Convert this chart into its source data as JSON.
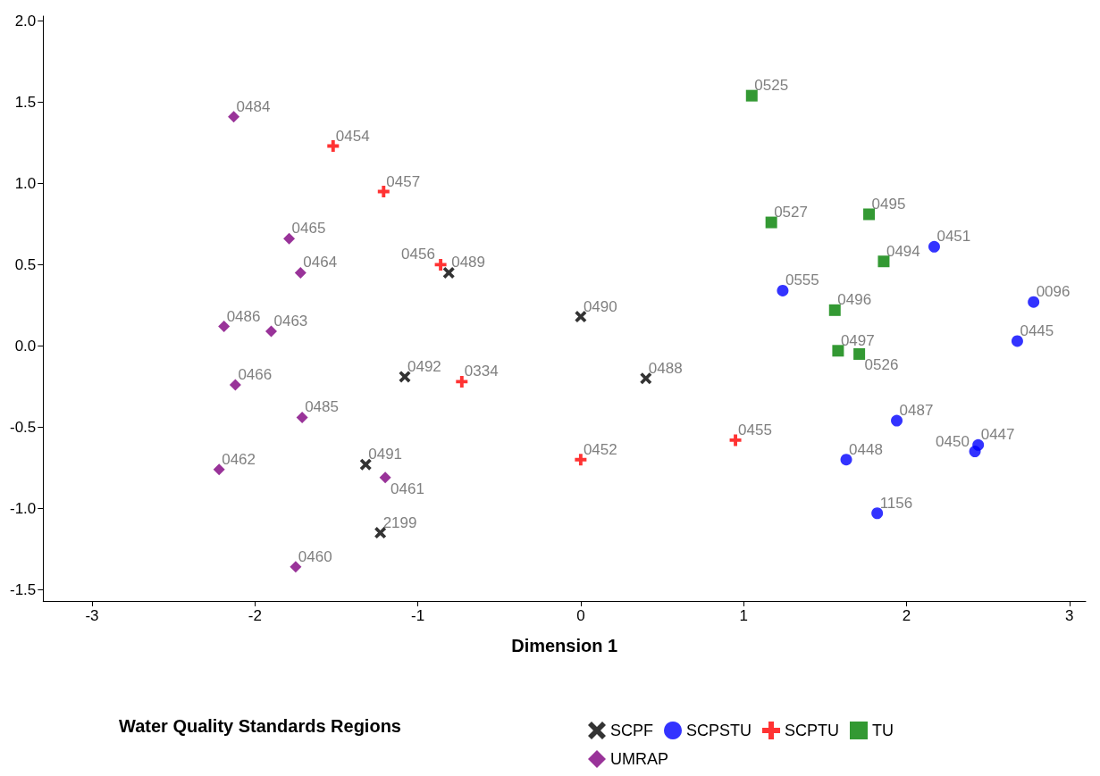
{
  "chart_data": {
    "type": "scatter",
    "xlabel": "Dimension 1",
    "legend_title": "Water Quality Standards Regions",
    "legend": "bottom",
    "grid": false,
    "xlim": [
      -3.3,
      3.1
    ],
    "xticks": [
      -3,
      -2,
      -1,
      0,
      1,
      2,
      3
    ],
    "ylim": [
      -1.57,
      2.03
    ],
    "yticks": [
      {
        "value": -1.5,
        "label": "-1.5"
      },
      {
        "value": -1,
        "label": "-1.0"
      },
      {
        "value": -0.5,
        "label": "-0.5"
      },
      {
        "value": 0,
        "label": "0.0"
      },
      {
        "value": 0.5,
        "label": "0.5"
      },
      {
        "value": 1,
        "label": "1.0"
      },
      {
        "value": 1.5,
        "label": "1.5"
      },
      {
        "value": 2,
        "label": "2.0"
      }
    ],
    "series": [
      {
        "name": "SCPF",
        "color": "#000000",
        "marker": "cross",
        "x": [
          -0.81,
          0,
          -1.08,
          0.4,
          -1.32,
          -1.23
        ],
        "values": [
          0.45,
          0.18,
          -0.19,
          -0.2,
          -0.73,
          -1.15
        ]
      },
      {
        "name": "SCPSTU",
        "color": "#0000ff",
        "marker": "circle",
        "x": [
          2.17,
          1.24,
          2.78,
          2.68,
          1.94,
          2.44,
          2.42,
          1.63,
          1.82
        ],
        "values": [
          0.61,
          0.34,
          0.27,
          0.03,
          -0.46,
          -0.61,
          -0.65,
          -0.7,
          -1.03
        ]
      },
      {
        "name": "SCPTU",
        "color": "#ff0000",
        "marker": "plus",
        "x": [
          -1.52,
          -1.21,
          -0.86,
          -0.73,
          0,
          0.95
        ],
        "values": [
          1.23,
          0.95,
          0.5,
          -0.22,
          -0.7,
          -0.58
        ]
      },
      {
        "name": "TU",
        "color": "#008000",
        "marker": "square",
        "x": [
          1.05,
          1.17,
          1.77,
          1.86,
          1.56,
          1.58,
          1.71
        ],
        "values": [
          1.54,
          0.76,
          0.81,
          0.52,
          0.22,
          -0.03,
          -0.05
        ]
      },
      {
        "name": "UMRAP",
        "color": "#800080",
        "marker": "diamond",
        "x": [
          -2.13,
          -1.79,
          -1.72,
          -2.19,
          -1.9,
          -2.12,
          -1.71,
          -2.22,
          -1.2,
          -1.75
        ],
        "values": [
          1.41,
          0.66,
          0.45,
          0.12,
          0.09,
          -0.24,
          -0.44,
          -0.76,
          -0.81,
          -1.36
        ]
      }
    ],
    "annotations": [
      {
        "text": "0489",
        "x": -0.81,
        "y": 0.45
      },
      {
        "text": "0490",
        "x": 0,
        "y": 0.18
      },
      {
        "text": "0492",
        "x": -1.08,
        "y": -0.19
      },
      {
        "text": "0488",
        "x": 0.4,
        "y": -0.2
      },
      {
        "text": "0491",
        "x": -1.32,
        "y": -0.73
      },
      {
        "text": "2199",
        "x": -1.23,
        "y": -1.15
      },
      {
        "text": "0451",
        "x": 2.17,
        "y": 0.61
      },
      {
        "text": "0555",
        "x": 1.24,
        "y": 0.34
      },
      {
        "text": "0096",
        "x": 2.78,
        "y": 0.27
      },
      {
        "text": "0445",
        "x": 2.68,
        "y": 0.03
      },
      {
        "text": "0487",
        "x": 1.94,
        "y": -0.46
      },
      {
        "text": "0447",
        "x": 2.44,
        "y": -0.61
      },
      {
        "text": "0450",
        "x": 2.42,
        "y": -0.65
      },
      {
        "text": "0448",
        "x": 1.63,
        "y": -0.7
      },
      {
        "text": "1156",
        "x": 1.82,
        "y": -1.03
      },
      {
        "text": "0454",
        "x": -1.52,
        "y": 1.23
      },
      {
        "text": "0457",
        "x": -1.21,
        "y": 0.95
      },
      {
        "text": "0456",
        "x": -0.86,
        "y": 0.5
      },
      {
        "text": "0334",
        "x": -0.73,
        "y": -0.22
      },
      {
        "text": "0452",
        "x": 0,
        "y": -0.7
      },
      {
        "text": "0455",
        "x": 0.95,
        "y": -0.58
      },
      {
        "text": "0525",
        "x": 1.05,
        "y": 1.54
      },
      {
        "text": "0527",
        "x": 1.17,
        "y": 0.76
      },
      {
        "text": "0495",
        "x": 1.77,
        "y": 0.81
      },
      {
        "text": "0494",
        "x": 1.86,
        "y": 0.52
      },
      {
        "text": "0496",
        "x": 1.56,
        "y": 0.22
      },
      {
        "text": "0497",
        "x": 1.58,
        "y": -0.03
      },
      {
        "text": "0526",
        "x": 1.71,
        "y": -0.05
      },
      {
        "text": "0484",
        "x": -2.13,
        "y": 1.41
      },
      {
        "text": "0465",
        "x": -1.79,
        "y": 0.66
      },
      {
        "text": "0464",
        "x": -1.72,
        "y": 0.45
      },
      {
        "text": "0486",
        "x": -2.19,
        "y": 0.12
      },
      {
        "text": "0463",
        "x": -1.9,
        "y": 0.09
      },
      {
        "text": "0466",
        "x": -2.12,
        "y": -0.24
      },
      {
        "text": "0485",
        "x": -1.71,
        "y": -0.44
      },
      {
        "text": "0462",
        "x": -2.22,
        "y": -0.76
      },
      {
        "text": "0461",
        "x": -1.2,
        "y": -0.81
      },
      {
        "text": "0460",
        "x": -1.75,
        "y": -1.36
      }
    ]
  }
}
